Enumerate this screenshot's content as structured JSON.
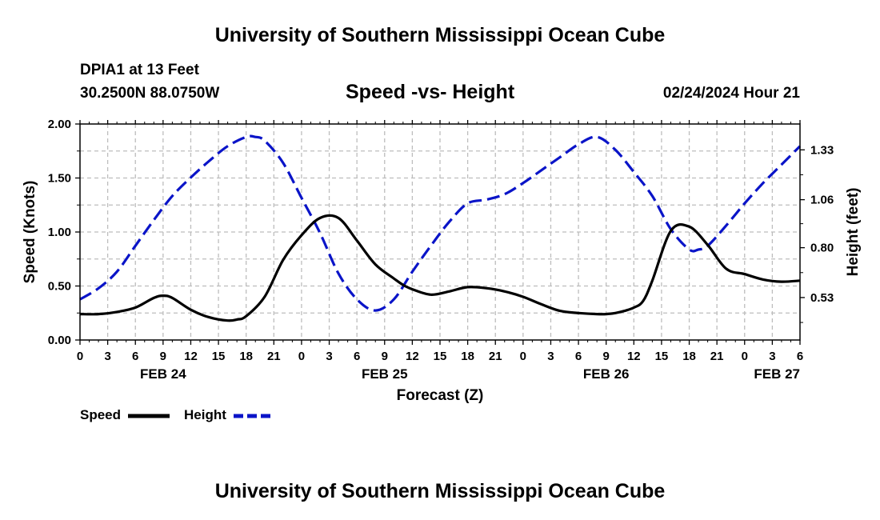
{
  "header": {
    "title": "University of Southern Mississippi Ocean Cube",
    "station": "DPIA1 at 13 Feet",
    "coordinates": "30.2500N  88.0750W",
    "subtitle": "Speed -vs- Height",
    "datetime": "02/24/2024 Hour 21"
  },
  "footer": {
    "title": "University of Southern Mississippi Ocean Cube"
  },
  "legend": {
    "speed_label": "Speed",
    "height_label": "Height"
  },
  "colors": {
    "speed": "#000000",
    "height": "#0a14c8",
    "grid": "#bdbdbd"
  },
  "chart_data": {
    "type": "line",
    "title": "Speed -vs- Height",
    "xlabel": "Forecast (Z)",
    "ylabel": "Speed (Knots)",
    "y2label": "Height (feet)",
    "xlim": [
      0,
      78
    ],
    "ylim": [
      0,
      2.0
    ],
    "y2lim": [
      0.3,
      1.47
    ],
    "x_ticks": [
      0,
      3,
      6,
      9,
      12,
      15,
      18,
      21,
      24,
      27,
      30,
      33,
      36,
      39,
      42,
      45,
      48,
      51,
      54,
      57,
      60,
      63,
      66,
      69,
      72,
      75,
      78
    ],
    "x_tick_labels": [
      "0",
      "3",
      "6",
      "9",
      "12",
      "15",
      "18",
      "21",
      "0",
      "3",
      "6",
      "9",
      "12",
      "15",
      "18",
      "21",
      "0",
      "3",
      "6",
      "9",
      "12",
      "15",
      "18",
      "21",
      "0",
      "3",
      "6"
    ],
    "date_labels": [
      {
        "x": 9,
        "label": "FEB 24"
      },
      {
        "x": 33,
        "label": "FEB 25"
      },
      {
        "x": 57,
        "label": "FEB 26"
      },
      {
        "x": 78,
        "label": "FEB 27"
      }
    ],
    "y_ticks": [
      0,
      0.5,
      1.0,
      1.5,
      2.0
    ],
    "y_tick_labels": [
      "0.00",
      "0.50",
      "1.00",
      "1.50",
      "2.00"
    ],
    "y2_ticks": [
      0.53,
      0.8,
      1.06,
      1.33
    ],
    "y2_tick_labels": [
      "0.53",
      "0.80",
      "1.06",
      "1.33"
    ],
    "grid": true,
    "series": [
      {
        "name": "Speed",
        "axis": "left",
        "style": "solid",
        "x": [
          0,
          2,
          4,
          6,
          8,
          9,
          10,
          12,
          14,
          16,
          17,
          18,
          20,
          22,
          24,
          26,
          28,
          30,
          32,
          34,
          35,
          36,
          38,
          40,
          42,
          44,
          46,
          48,
          50,
          52,
          54,
          56,
          57,
          58,
          59,
          60,
          61,
          62,
          64,
          66,
          68,
          70,
          72,
          74,
          76,
          78
        ],
        "values": [
          0.24,
          0.24,
          0.26,
          0.3,
          0.39,
          0.41,
          0.39,
          0.28,
          0.21,
          0.18,
          0.19,
          0.22,
          0.4,
          0.74,
          0.97,
          1.13,
          1.13,
          0.92,
          0.7,
          0.57,
          0.51,
          0.47,
          0.42,
          0.45,
          0.49,
          0.48,
          0.45,
          0.4,
          0.33,
          0.27,
          0.25,
          0.24,
          0.24,
          0.25,
          0.27,
          0.3,
          0.36,
          0.55,
          1.01,
          1.05,
          0.88,
          0.66,
          0.61,
          0.56,
          0.54,
          0.55
        ]
      },
      {
        "name": "Height",
        "axis": "right",
        "style": "dashed",
        "x": [
          0,
          2,
          4,
          6,
          8,
          10,
          12,
          14,
          16,
          18,
          19,
          20,
          22,
          24,
          26,
          28,
          30,
          32,
          34,
          36,
          38,
          40,
          42,
          44,
          46,
          48,
          50,
          52,
          54,
          56,
          58,
          60,
          62,
          64,
          66,
          67,
          68,
          70,
          72,
          74,
          76,
          78
        ],
        "values": [
          0.52,
          0.58,
          0.67,
          0.81,
          0.95,
          1.08,
          1.18,
          1.27,
          1.35,
          1.4,
          1.4,
          1.38,
          1.26,
          1.07,
          0.88,
          0.66,
          0.52,
          0.46,
          0.52,
          0.67,
          0.81,
          0.94,
          1.04,
          1.06,
          1.09,
          1.15,
          1.22,
          1.29,
          1.36,
          1.4,
          1.33,
          1.21,
          1.08,
          0.9,
          0.79,
          0.79,
          0.81,
          0.92,
          1.04,
          1.15,
          1.25,
          1.35
        ]
      }
    ]
  }
}
